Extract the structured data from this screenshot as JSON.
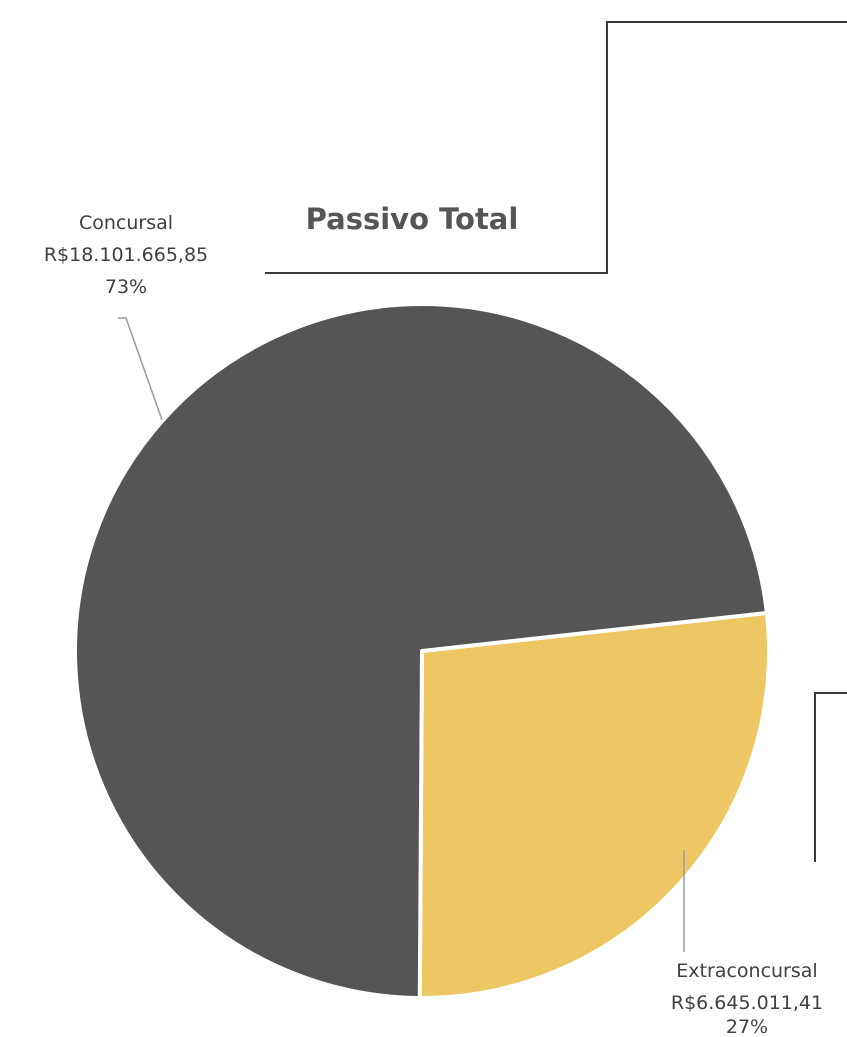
{
  "chart_data": {
    "type": "pie",
    "title": "Passivo Total",
    "slices": [
      {
        "label": "Concursal",
        "value_text": "R$18.101.665,85",
        "percent_text": "73%",
        "value": 18101665.85,
        "color": "#555555"
      },
      {
        "label": "Extraconcursal",
        "value_text": "R$6.645.011,41",
        "percent_text": "27%",
        "value": 6645011.41,
        "color": "#EDC763"
      }
    ]
  }
}
